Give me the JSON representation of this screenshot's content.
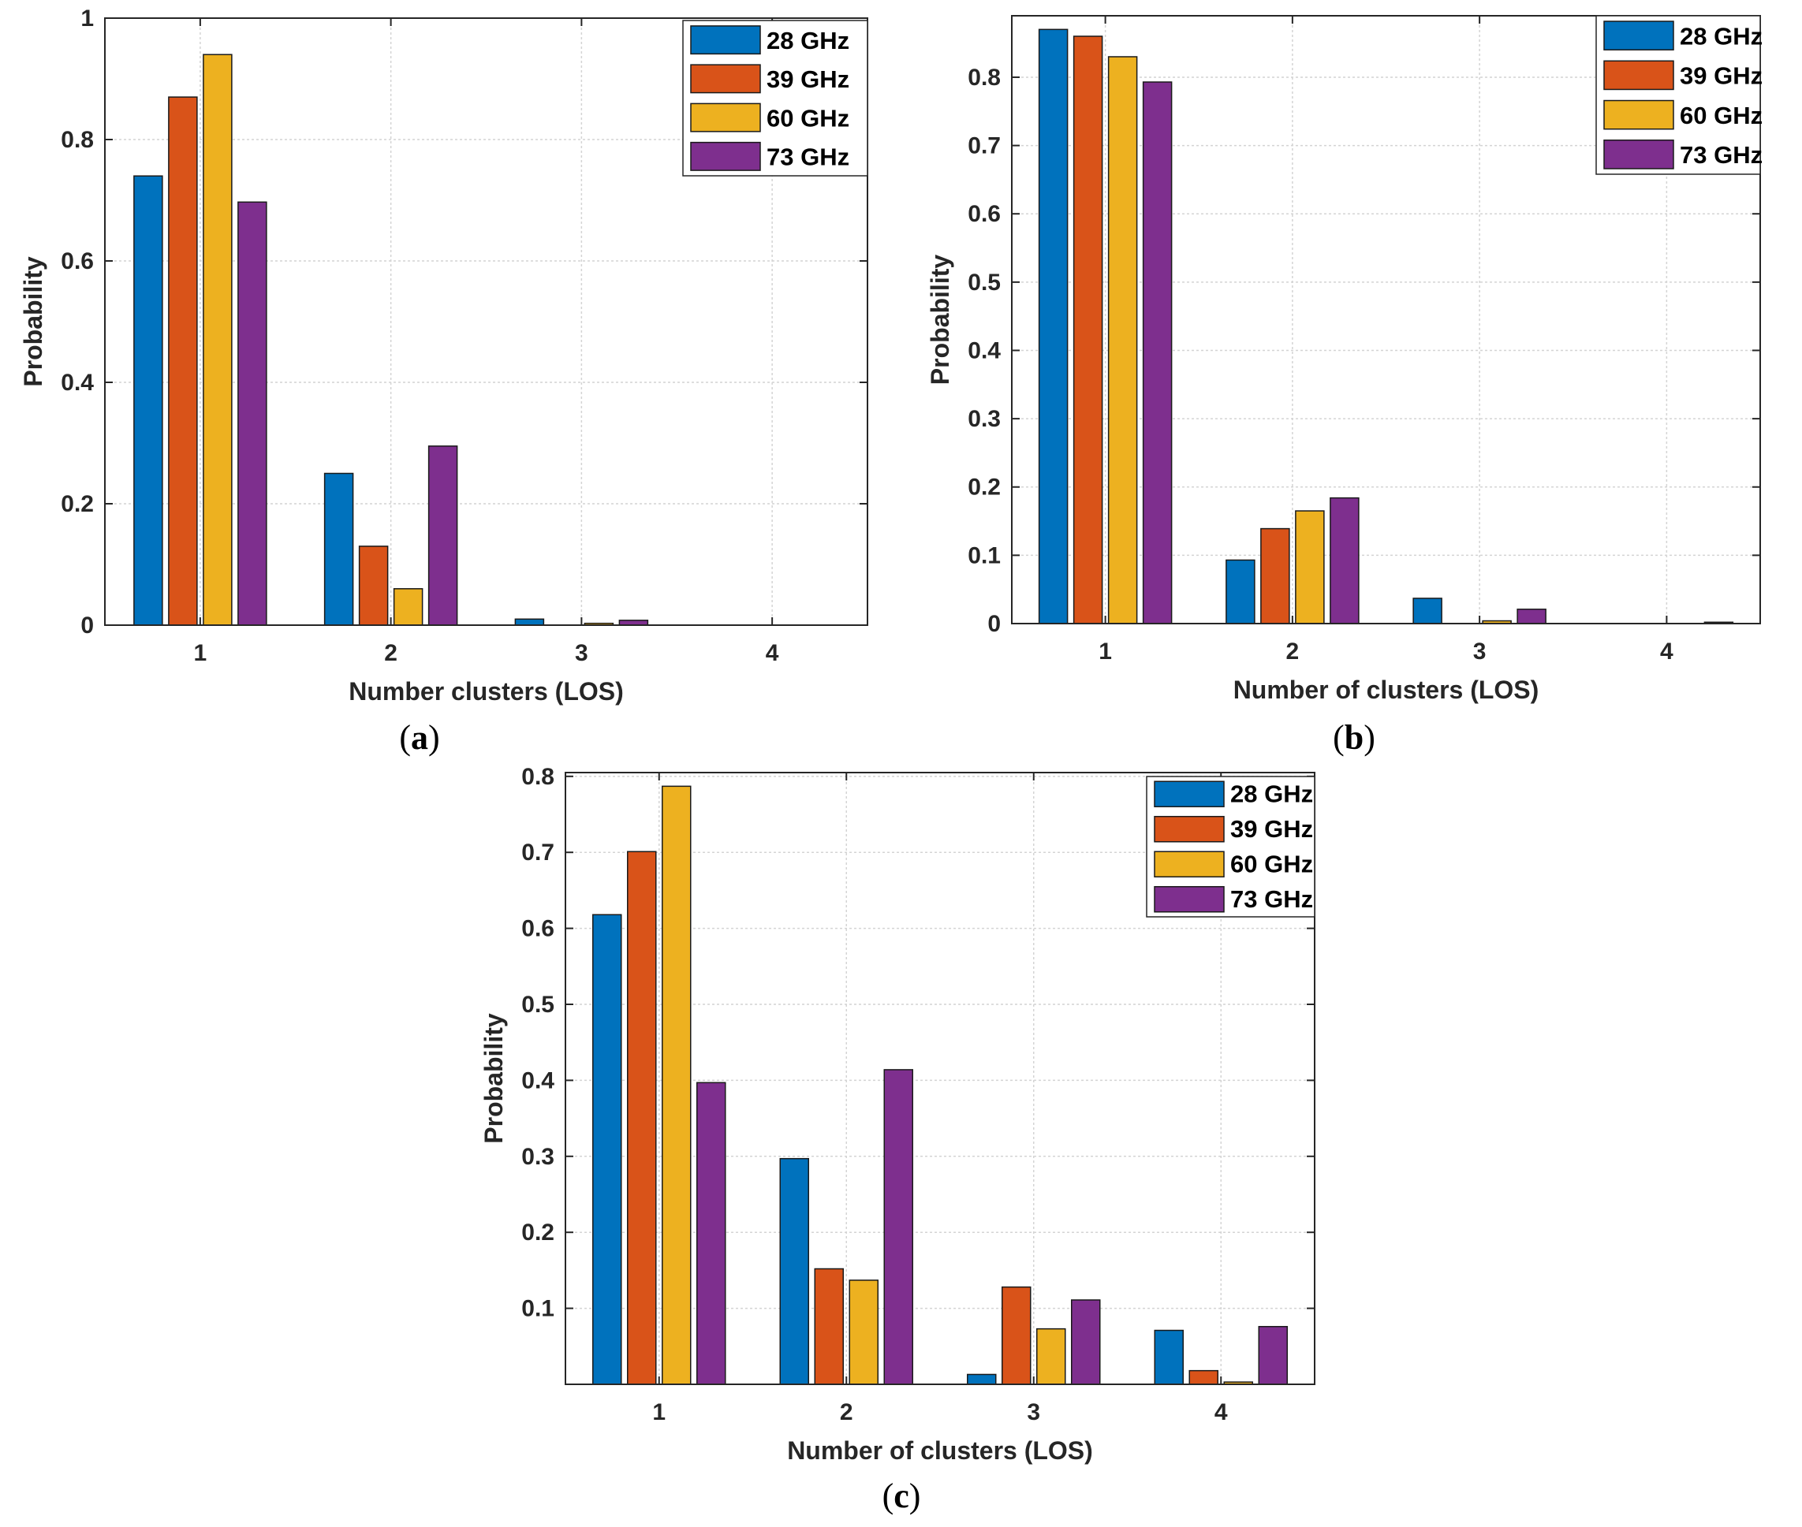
{
  "colors": {
    "28 GHz": "#0072BD",
    "39 GHz": "#D95319",
    "60 GHz": "#EDB120",
    "73 GHz": "#7E2F8E"
  },
  "chart_data": [
    {
      "id": "a",
      "type": "bar",
      "caption_letter": "a",
      "xlabel": "Number clusters (LOS)",
      "ylabel": "Probability",
      "categories": [
        "1",
        "2",
        "3",
        "4"
      ],
      "ylim": [
        0,
        1
      ],
      "yticks": [
        "0",
        "0.2",
        "0.4",
        "0.6",
        "0.8",
        "1"
      ],
      "ytick_values": [
        0,
        0.2,
        0.4,
        0.6,
        0.8,
        1
      ],
      "grid": true,
      "legend_position": "top-right",
      "series": [
        {
          "name": "28 GHz",
          "values": [
            0.74,
            0.25,
            0.01,
            0.0
          ]
        },
        {
          "name": "39 GHz",
          "values": [
            0.87,
            0.13,
            0.0,
            0.0
          ]
        },
        {
          "name": "60 GHz",
          "values": [
            0.94,
            0.06,
            0.003,
            0.0
          ]
        },
        {
          "name": "73 GHz",
          "values": [
            0.697,
            0.295,
            0.008,
            0.0
          ]
        }
      ]
    },
    {
      "id": "b",
      "type": "bar",
      "caption_letter": "b",
      "xlabel": "Number of clusters (LOS)",
      "ylabel": "Probability",
      "categories": [
        "1",
        "2",
        "3",
        "4"
      ],
      "ylim": [
        0,
        0.89
      ],
      "yticks": [
        "0",
        "0.1",
        "0.2",
        "0.3",
        "0.4",
        "0.5",
        "0.6",
        "0.7",
        "0.8"
      ],
      "ytick_values": [
        0,
        0.1,
        0.2,
        0.3,
        0.4,
        0.5,
        0.6,
        0.7,
        0.8
      ],
      "grid": true,
      "legend_position": "top-right",
      "series": [
        {
          "name": "28 GHz",
          "values": [
            0.87,
            0.093,
            0.037,
            0.0
          ]
        },
        {
          "name": "39 GHz",
          "values": [
            0.86,
            0.139,
            0.0,
            0.0
          ]
        },
        {
          "name": "60 GHz",
          "values": [
            0.83,
            0.165,
            0.004,
            0.0
          ]
        },
        {
          "name": "73 GHz",
          "values": [
            0.793,
            0.184,
            0.021,
            0.002
          ]
        }
      ]
    },
    {
      "id": "c",
      "type": "bar",
      "caption_letter": "c",
      "xlabel": "Number of clusters (LOS)",
      "ylabel": "Probability",
      "categories": [
        "1",
        "2",
        "3",
        "4"
      ],
      "ylim": [
        0.0,
        0.805
      ],
      "yticks": [
        "0.1",
        "0.2",
        "0.3",
        "0.4",
        "0.5",
        "0.6",
        "0.7",
        "0.8"
      ],
      "ytick_values": [
        0.1,
        0.2,
        0.3,
        0.4,
        0.5,
        0.6,
        0.7,
        0.8
      ],
      "grid": true,
      "legend_position": "top-right",
      "series": [
        {
          "name": "28 GHz",
          "values": [
            0.618,
            0.297,
            0.013,
            0.071
          ]
        },
        {
          "name": "39 GHz",
          "values": [
            0.701,
            0.152,
            0.128,
            0.018
          ]
        },
        {
          "name": "60 GHz",
          "values": [
            0.787,
            0.137,
            0.073,
            0.003
          ]
        },
        {
          "name": "73 GHz",
          "values": [
            0.397,
            0.414,
            0.111,
            0.076
          ]
        }
      ]
    }
  ]
}
